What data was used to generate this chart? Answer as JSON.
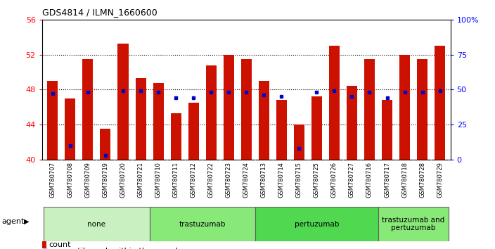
{
  "title": "GDS4814 / ILMN_1660600",
  "samples": [
    "GSM780707",
    "GSM780708",
    "GSM780709",
    "GSM780719",
    "GSM780720",
    "GSM780721",
    "GSM780710",
    "GSM780711",
    "GSM780712",
    "GSM780722",
    "GSM780723",
    "GSM780724",
    "GSM780713",
    "GSM780714",
    "GSM780715",
    "GSM780725",
    "GSM780726",
    "GSM780727",
    "GSM780716",
    "GSM780717",
    "GSM780718",
    "GSM780728",
    "GSM780729"
  ],
  "counts": [
    49.0,
    47.0,
    51.5,
    43.5,
    53.3,
    49.3,
    48.8,
    45.3,
    46.5,
    50.8,
    52.0,
    51.5,
    49.0,
    46.8,
    44.0,
    47.2,
    53.0,
    48.4,
    51.5,
    46.8,
    52.0,
    51.5,
    53.0
  ],
  "percentile": [
    47,
    10,
    48,
    3,
    49,
    49,
    48,
    44,
    44,
    48,
    48,
    48,
    46,
    45,
    8,
    48,
    49,
    45,
    48,
    44,
    48,
    48,
    49
  ],
  "groups": [
    {
      "label": "none",
      "start": 0,
      "end": 6,
      "color": "#c8f0c0"
    },
    {
      "label": "trastuzumab",
      "start": 6,
      "end": 12,
      "color": "#88e878"
    },
    {
      "label": "pertuzumab",
      "start": 12,
      "end": 19,
      "color": "#50d850"
    },
    {
      "label": "trastuzumab and\npertuzumab",
      "start": 19,
      "end": 23,
      "color": "#88e878"
    }
  ],
  "ymin": 40,
  "ymax": 56,
  "bar_color": "#cc1100",
  "percentile_color": "#0000cc"
}
